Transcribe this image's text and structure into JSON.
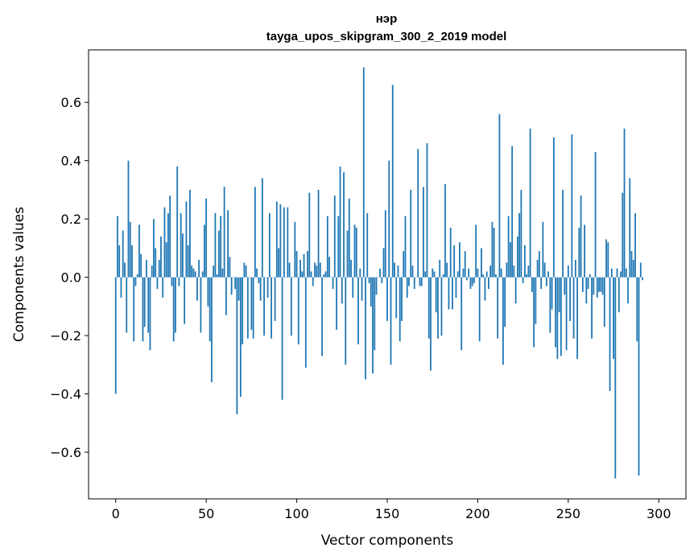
{
  "chart_data": {
    "type": "bar",
    "title": "нэр",
    "subtitle": "tayga_upos_skipgram_300_2_2019 model",
    "xlabel": "Vector components",
    "ylabel": "Components values",
    "xlim": [
      -15,
      315
    ],
    "ylim": [
      -0.76,
      0.78
    ],
    "xticks": [
      0,
      50,
      100,
      150,
      200,
      250,
      300
    ],
    "xtick_labels": [
      "0",
      "50",
      "100",
      "150",
      "200",
      "250",
      "300"
    ],
    "yticks": [
      -0.6,
      -0.4,
      -0.2,
      0.0,
      0.2,
      0.4,
      0.6
    ],
    "ytick_labels": [
      "−0.6",
      "−0.4",
      "−0.2",
      "0.0",
      "0.2",
      "0.4",
      "0.6"
    ],
    "color": "#1f77b4",
    "grid": false,
    "values": [
      -0.4,
      0.21,
      0.11,
      -0.07,
      0.16,
      0.05,
      -0.19,
      0.4,
      0.19,
      0.11,
      -0.22,
      -0.03,
      0.01,
      0.18,
      0.08,
      -0.22,
      -0.17,
      0.06,
      -0.19,
      -0.25,
      0.04,
      0.2,
      0.1,
      -0.04,
      0.06,
      0.14,
      -0.07,
      0.24,
      0.12,
      0.22,
      0.28,
      -0.03,
      -0.22,
      -0.19,
      0.38,
      -0.03,
      0.22,
      0.15,
      -0.16,
      0.26,
      0.11,
      0.3,
      0.04,
      0.03,
      0.02,
      -0.08,
      0.06,
      -0.19,
      0.02,
      0.18,
      0.27,
      -0.1,
      -0.22,
      -0.36,
      0.04,
      0.22,
      0.01,
      0.16,
      0.21,
      0.03,
      0.31,
      -0.13,
      0.23,
      0.07,
      -0.06,
      0.0,
      -0.04,
      -0.47,
      -0.08,
      -0.41,
      -0.23,
      0.05,
      0.04,
      -0.21,
      0.0,
      -0.18,
      -0.21,
      0.31,
      0.03,
      -0.02,
      -0.08,
      0.34,
      -0.2,
      0.0,
      -0.07,
      0.22,
      -0.21,
      0.0,
      -0.15,
      0.26,
      0.1,
      0.25,
      -0.42,
      0.24,
      0.0,
      0.24,
      0.05,
      -0.2,
      0.0,
      0.19,
      0.09,
      -0.23,
      0.06,
      0.02,
      0.08,
      -0.31,
      0.09,
      0.29,
      0.02,
      -0.03,
      0.05,
      0.04,
      0.3,
      0.05,
      -0.27,
      0.01,
      0.02,
      0.21,
      0.07,
      0.0,
      -0.04,
      0.28,
      -0.18,
      0.21,
      0.38,
      -0.09,
      0.36,
      -0.3,
      0.16,
      0.27,
      0.06,
      -0.07,
      0.18,
      0.17,
      -0.23,
      0.03,
      -0.08,
      0.72,
      -0.35,
      0.22,
      -0.02,
      -0.1,
      -0.33,
      -0.25,
      -0.06,
      0.0,
      0.03,
      -0.02,
      0.1,
      0.23,
      -0.15,
      0.4,
      -0.3,
      0.66,
      0.05,
      -0.14,
      0.04,
      -0.22,
      -0.15,
      0.09,
      0.21,
      -0.07,
      -0.03,
      0.3,
      0.04,
      -0.04,
      0.0,
      0.44,
      -0.03,
      -0.03,
      0.31,
      0.02,
      0.46,
      -0.21,
      -0.32,
      0.03,
      0.02,
      -0.12,
      -0.21,
      0.06,
      -0.2,
      0.01,
      0.32,
      0.05,
      -0.11,
      0.17,
      -0.11,
      0.11,
      -0.07,
      0.02,
      0.12,
      -0.25,
      0.03,
      0.09,
      -0.01,
      0.03,
      -0.04,
      -0.03,
      -0.02,
      0.18,
      0.03,
      -0.22,
      0.1,
      0.01,
      -0.08,
      0.02,
      -0.04,
      0.04,
      0.19,
      0.17,
      0.01,
      -0.21,
      0.56,
      0.03,
      -0.3,
      -0.17,
      0.05,
      0.21,
      0.12,
      0.45,
      0.04,
      -0.09,
      0.14,
      0.22,
      0.3,
      -0.02,
      0.11,
      0.01,
      0.04,
      0.51,
      -0.05,
      -0.24,
      -0.16,
      0.06,
      0.09,
      -0.04,
      0.19,
      0.05,
      -0.03,
      0.02,
      -0.19,
      -0.11,
      0.48,
      -0.24,
      -0.28,
      -0.12,
      -0.27,
      0.3,
      -0.06,
      -0.25,
      0.04,
      -0.15,
      0.49,
      -0.21,
      0.06,
      -0.28,
      0.17,
      0.28,
      -0.05,
      0.18,
      -0.09,
      -0.04,
      0.01,
      -0.21,
      -0.06,
      0.43,
      -0.07,
      -0.05,
      -0.05,
      -0.06,
      -0.17,
      0.13,
      0.12,
      -0.39,
      0.03,
      -0.28,
      -0.69,
      0.03,
      -0.12,
      0.02,
      0.29,
      0.51,
      0.03,
      -0.09,
      0.34,
      0.09,
      0.06,
      0.22,
      -0.22,
      -0.68,
      0.05,
      -0.01
    ]
  }
}
